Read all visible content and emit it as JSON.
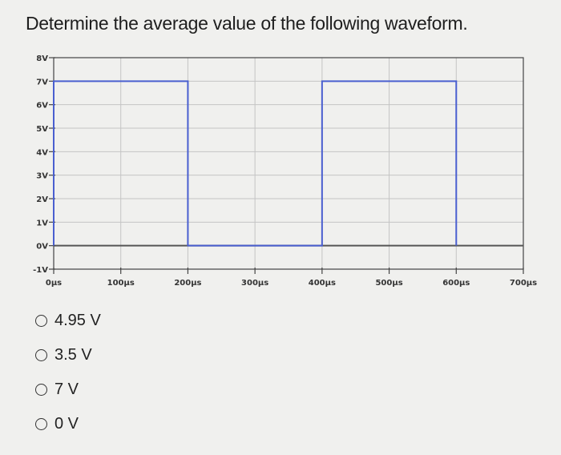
{
  "question": "Determine the average value of the following waveform.",
  "options": [
    {
      "label": "4.95 V"
    },
    {
      "label": "3.5 V"
    },
    {
      "label": "7 V"
    },
    {
      "label": "0 V"
    }
  ],
  "chart_data": {
    "type": "line",
    "title": "",
    "xlabel": "",
    "ylabel": "",
    "x_unit": "µs",
    "y_unit": "V",
    "xlim": [
      0,
      700
    ],
    "ylim": [
      -1,
      8
    ],
    "x_ticks": [
      {
        "value": 0,
        "label": "0µs"
      },
      {
        "value": 100,
        "label": "100µs"
      },
      {
        "value": 200,
        "label": "200µs"
      },
      {
        "value": 300,
        "label": "300µs"
      },
      {
        "value": 400,
        "label": "400µs"
      },
      {
        "value": 500,
        "label": "500µs"
      },
      {
        "value": 600,
        "label": "600µs"
      },
      {
        "value": 700,
        "label": "700µs"
      }
    ],
    "y_ticks": [
      {
        "value": -1,
        "label": "-1V"
      },
      {
        "value": 0,
        "label": "0V"
      },
      {
        "value": 1,
        "label": "1V"
      },
      {
        "value": 2,
        "label": "2V"
      },
      {
        "value": 3,
        "label": "3V"
      },
      {
        "value": 4,
        "label": "4V"
      },
      {
        "value": 5,
        "label": "5V"
      },
      {
        "value": 6,
        "label": "6V"
      },
      {
        "value": 7,
        "label": "7V"
      },
      {
        "value": 8,
        "label": "8V"
      }
    ],
    "grid": true,
    "series": [
      {
        "color": "#4a5fd0",
        "x": [
          0,
          0,
          200,
          200,
          400,
          400,
          600,
          600
        ],
        "y": [
          0,
          7,
          7,
          0,
          0,
          7,
          7,
          0
        ]
      }
    ],
    "baseline": {
      "y": 0,
      "color": "#555555"
    },
    "colors": {
      "axis": "#444444",
      "grid": "#c4c4c4",
      "background": "#f0f0ee"
    }
  }
}
